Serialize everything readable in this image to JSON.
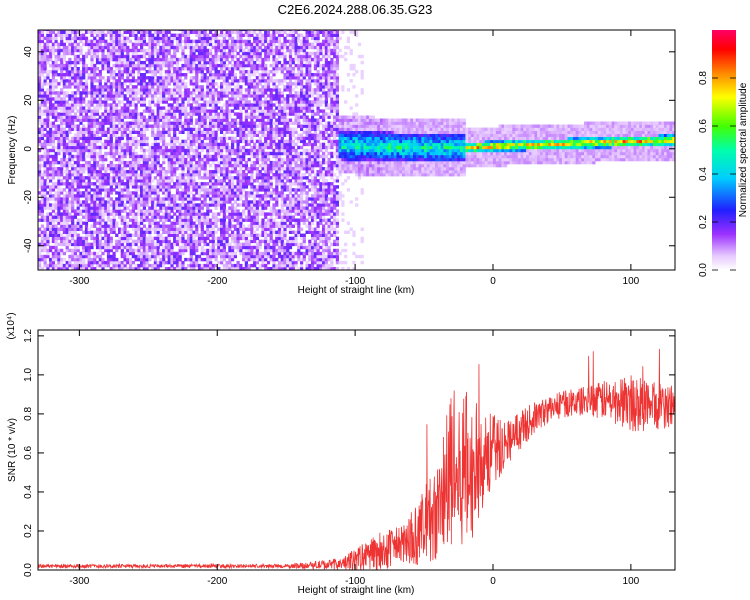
{
  "title": "C2E6.2024.288.06.35.G23",
  "chart_data": [
    {
      "type": "heatmap",
      "xlabel": "Height of straight line (km)",
      "ylabel": "Frequency (Hz)",
      "xlim": [
        -330,
        132
      ],
      "ylim": [
        -50,
        49
      ],
      "xticks": [
        -300,
        -200,
        -100,
        0,
        100
      ],
      "yticks": [
        -40,
        -20,
        0,
        20,
        40
      ],
      "colorbar": {
        "label": "Normalized spectral amplitude",
        "range": [
          0.0,
          1.0
        ],
        "ticks": [
          0.0,
          0.2,
          0.4,
          0.6,
          0.8
        ],
        "tick_labels": [
          "0.0",
          "0.2",
          "0.4",
          "0.6",
          "0.8"
        ]
      },
      "description_regions": [
        {
          "x_range": [
            -330,
            -112
          ],
          "freq_range": [
            -50,
            49
          ],
          "amplitude": 0.15
        },
        {
          "x_range": [
            -112,
            -20
          ],
          "freq_range": [
            -8,
            8
          ],
          "amplitude": 0.4
        },
        {
          "x_range": [
            -20,
            132
          ],
          "freq_range": [
            -2,
            6
          ],
          "amplitude": 0.75
        }
      ],
      "ridge": {
        "x": [
          -112,
          -60,
          -30,
          -20,
          0,
          50,
          100,
          132
        ],
        "y": [
          1,
          0,
          0,
          0,
          0.5,
          1.5,
          2.5,
          3
        ]
      }
    },
    {
      "type": "line",
      "xlabel": "Height of straight line (km)",
      "ylabel": "SNR (10 * v/v)",
      "yscale_label": "(x10⁴)",
      "xlim": [
        -330,
        132
      ],
      "ylim": [
        0,
        1.23
      ],
      "xticks": [
        -300,
        -200,
        -100,
        0,
        100
      ],
      "yticks": [
        0.0,
        0.2,
        0.4,
        0.6,
        0.8,
        1.0,
        1.2
      ],
      "ytick_labels": [
        "0.0",
        "0.2",
        "0.4",
        "0.6",
        "0.8",
        "1.0",
        "1.2"
      ],
      "series": [
        {
          "color": "#ee3333",
          "x": [
            -330,
            -300,
            -250,
            -200,
            -150,
            -130,
            -110,
            -100,
            -90,
            -80,
            -70,
            -60,
            -50,
            -40,
            -35,
            -30,
            -25,
            -20,
            -15,
            -10,
            -5,
            0,
            5,
            10,
            20,
            30,
            40,
            50,
            60,
            70,
            80,
            90,
            100,
            110,
            120,
            132
          ],
          "y": [
            0.02,
            0.02,
            0.02,
            0.02,
            0.02,
            0.025,
            0.03,
            0.05,
            0.08,
            0.1,
            0.12,
            0.15,
            0.22,
            0.3,
            0.4,
            0.5,
            0.45,
            0.55,
            0.48,
            0.58,
            0.6,
            0.6,
            0.63,
            0.66,
            0.72,
            0.78,
            0.82,
            0.85,
            0.86,
            0.87,
            0.87,
            0.86,
            0.86,
            0.85,
            0.84,
            0.84
          ],
          "noise": [
            0.01,
            0.01,
            0.01,
            0.01,
            0.01,
            0.02,
            0.03,
            0.06,
            0.08,
            0.1,
            0.1,
            0.12,
            0.2,
            0.25,
            0.35,
            0.4,
            0.35,
            0.4,
            0.35,
            0.3,
            0.25,
            0.2,
            0.15,
            0.12,
            0.1,
            0.08,
            0.07,
            0.07,
            0.07,
            0.08,
            0.1,
            0.12,
            0.15,
            0.15,
            0.12,
            0.12
          ]
        }
      ]
    }
  ]
}
